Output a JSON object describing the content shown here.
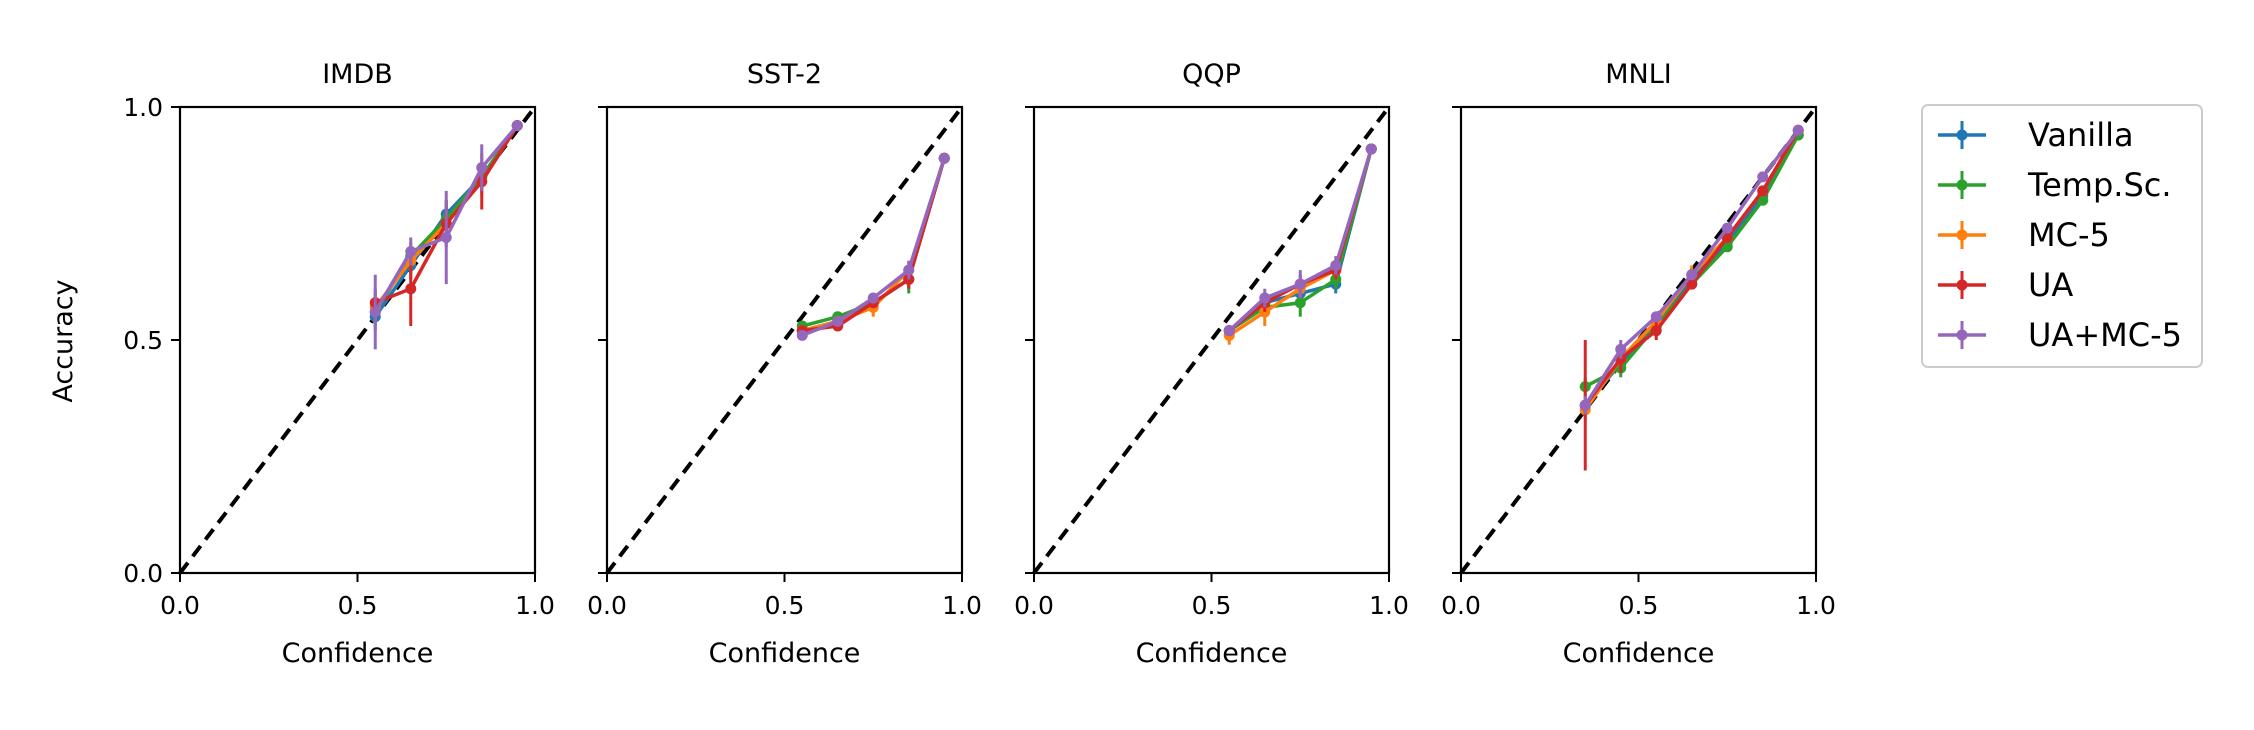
{
  "chart_data": {
    "type": "line",
    "ylabel": "Accuracy",
    "series_colors": {
      "Vanilla": "#1f77b4",
      "Temp.Sc.": "#2ca02c",
      "MC-5": "#ff7f0e",
      "UA": "#d62728",
      "UA+MC-5": "#9467bd"
    },
    "legend": {
      "placement": "right-outside",
      "entries": [
        "Vanilla",
        "Temp.Sc.",
        "MC-5",
        "UA",
        "UA+MC-5"
      ]
    },
    "xlim": [
      0,
      1
    ],
    "ylim": [
      0,
      1
    ],
    "xticks": [
      "0.0",
      "0.5",
      "1.0"
    ],
    "yticks": [
      "0.0",
      "0.5",
      "1.0"
    ],
    "reference_line": "diagonal-dashed",
    "panels": [
      {
        "title": "IMDB",
        "xlabel": "Confidence",
        "series": [
          {
            "name": "Vanilla",
            "x": [
              0.55,
              0.65,
              0.75,
              0.85,
              0.95
            ],
            "y": [
              0.55,
              0.66,
              0.77,
              0.85,
              0.96
            ],
            "err": [
              0.03,
              0.03,
              0.03,
              0.03,
              0.01
            ]
          },
          {
            "name": "Temp.Sc.",
            "x": [
              0.55,
              0.65,
              0.75,
              0.85,
              0.95
            ],
            "y": [
              0.56,
              0.68,
              0.76,
              0.85,
              0.96
            ],
            "err": [
              0.03,
              0.03,
              0.03,
              0.03,
              0.01
            ]
          },
          {
            "name": "MC-5",
            "x": [
              0.55,
              0.65,
              0.75,
              0.85,
              0.95
            ],
            "y": [
              0.57,
              0.67,
              0.75,
              0.84,
              0.96
            ],
            "err": [
              0.03,
              0.03,
              0.03,
              0.03,
              0.01
            ]
          },
          {
            "name": "UA",
            "x": [
              0.55,
              0.65,
              0.75,
              0.85,
              0.95
            ],
            "y": [
              0.58,
              0.61,
              0.75,
              0.84,
              0.96
            ],
            "err": [
              0.03,
              0.08,
              0.05,
              0.06,
              0.01
            ]
          },
          {
            "name": "UA+MC-5",
            "x": [
              0.55,
              0.65,
              0.75,
              0.85,
              0.95
            ],
            "y": [
              0.56,
              0.69,
              0.72,
              0.87,
              0.96
            ],
            "err": [
              0.08,
              0.03,
              0.1,
              0.05,
              0.01
            ]
          }
        ]
      },
      {
        "title": "SST-2",
        "xlabel": "Confidence",
        "series": [
          {
            "name": "Vanilla",
            "x": [
              0.55,
              0.65,
              0.75,
              0.85,
              0.95
            ],
            "y": [
              0.52,
              0.54,
              0.58,
              0.63,
              0.89
            ],
            "err": [
              0.01,
              0.01,
              0.01,
              0.02,
              0.01
            ]
          },
          {
            "name": "Temp.Sc.",
            "x": [
              0.55,
              0.65,
              0.75,
              0.85,
              0.95
            ],
            "y": [
              0.53,
              0.55,
              0.58,
              0.63,
              0.89
            ],
            "err": [
              0.01,
              0.01,
              0.01,
              0.03,
              0.01
            ]
          },
          {
            "name": "MC-5",
            "x": [
              0.55,
              0.65,
              0.75,
              0.85,
              0.95
            ],
            "y": [
              0.52,
              0.54,
              0.57,
              0.65,
              0.89
            ],
            "err": [
              0.01,
              0.01,
              0.02,
              0.02,
              0.01
            ]
          },
          {
            "name": "UA",
            "x": [
              0.55,
              0.65,
              0.75,
              0.85,
              0.95
            ],
            "y": [
              0.52,
              0.53,
              0.58,
              0.63,
              0.89
            ],
            "err": [
              0.01,
              0.01,
              0.01,
              0.02,
              0.01
            ]
          },
          {
            "name": "UA+MC-5",
            "x": [
              0.55,
              0.65,
              0.75,
              0.85,
              0.95
            ],
            "y": [
              0.51,
              0.54,
              0.59,
              0.65,
              0.89
            ],
            "err": [
              0.01,
              0.01,
              0.01,
              0.02,
              0.01
            ]
          }
        ]
      },
      {
        "title": "QQP",
        "xlabel": "Confidence",
        "series": [
          {
            "name": "Vanilla",
            "x": [
              0.55,
              0.65,
              0.75,
              0.85,
              0.95
            ],
            "y": [
              0.52,
              0.58,
              0.6,
              0.62,
              0.91
            ],
            "err": [
              0.01,
              0.02,
              0.02,
              0.02,
              0.01
            ]
          },
          {
            "name": "Temp.Sc.",
            "x": [
              0.55,
              0.65,
              0.75,
              0.85,
              0.95
            ],
            "y": [
              0.52,
              0.57,
              0.58,
              0.63,
              0.91
            ],
            "err": [
              0.01,
              0.02,
              0.03,
              0.02,
              0.01
            ]
          },
          {
            "name": "MC-5",
            "x": [
              0.55,
              0.65,
              0.75,
              0.85,
              0.95
            ],
            "y": [
              0.51,
              0.56,
              0.61,
              0.65,
              0.91
            ],
            "err": [
              0.02,
              0.03,
              0.02,
              0.02,
              0.01
            ]
          },
          {
            "name": "UA",
            "x": [
              0.55,
              0.65,
              0.75,
              0.85,
              0.95
            ],
            "y": [
              0.52,
              0.58,
              0.62,
              0.65,
              0.91
            ],
            "err": [
              0.01,
              0.02,
              0.02,
              0.02,
              0.01
            ]
          },
          {
            "name": "UA+MC-5",
            "x": [
              0.55,
              0.65,
              0.75,
              0.85,
              0.95
            ],
            "y": [
              0.52,
              0.59,
              0.62,
              0.66,
              0.91
            ],
            "err": [
              0.01,
              0.02,
              0.03,
              0.02,
              0.01
            ]
          }
        ]
      },
      {
        "title": "MNLI",
        "xlabel": "Confidence",
        "series": [
          {
            "name": "Vanilla",
            "x": [
              0.35,
              0.45,
              0.55,
              0.65,
              0.75,
              0.85,
              0.95
            ],
            "y": [
              0.36,
              0.45,
              0.53,
              0.63,
              0.71,
              0.81,
              0.94
            ],
            "err": [
              0.02,
              0.02,
              0.01,
              0.01,
              0.01,
              0.01,
              0.01
            ]
          },
          {
            "name": "Temp.Sc.",
            "x": [
              0.35,
              0.45,
              0.55,
              0.65,
              0.75,
              0.85,
              0.95
            ],
            "y": [
              0.4,
              0.44,
              0.53,
              0.62,
              0.7,
              0.8,
              0.94
            ],
            "err": [
              0.02,
              0.02,
              0.01,
              0.01,
              0.01,
              0.01,
              0.01
            ]
          },
          {
            "name": "MC-5",
            "x": [
              0.35,
              0.45,
              0.55,
              0.65,
              0.75,
              0.85,
              0.95
            ],
            "y": [
              0.35,
              0.46,
              0.54,
              0.64,
              0.72,
              0.82,
              0.95
            ],
            "err": [
              0.02,
              0.02,
              0.01,
              0.02,
              0.01,
              0.01,
              0.01
            ]
          },
          {
            "name": "UA",
            "x": [
              0.35,
              0.45,
              0.55,
              0.65,
              0.75,
              0.85,
              0.95
            ],
            "y": [
              0.36,
              0.46,
              0.52,
              0.62,
              0.72,
              0.82,
              0.95
            ],
            "err": [
              0.14,
              0.03,
              0.02,
              0.01,
              0.01,
              0.01,
              0.01
            ]
          },
          {
            "name": "UA+MC-5",
            "x": [
              0.35,
              0.45,
              0.55,
              0.65,
              0.75,
              0.85,
              0.95
            ],
            "y": [
              0.36,
              0.48,
              0.55,
              0.64,
              0.74,
              0.85,
              0.95
            ],
            "err": [
              0.02,
              0.02,
              0.01,
              0.01,
              0.01,
              0.01,
              0.01
            ]
          }
        ]
      }
    ]
  }
}
